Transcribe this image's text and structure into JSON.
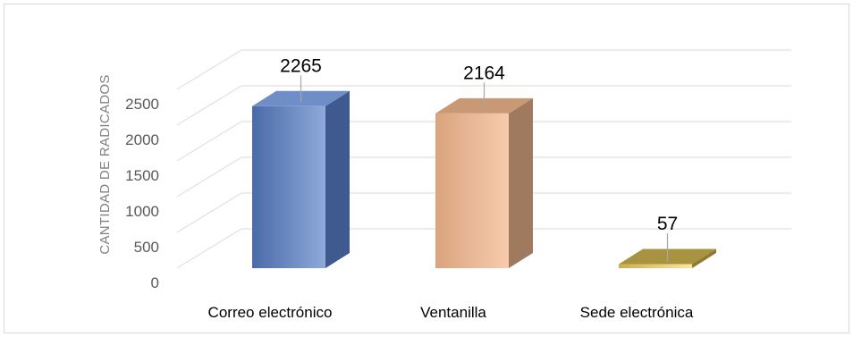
{
  "chart_data": {
    "type": "bar",
    "style": "3d-column",
    "categories": [
      "Correo electrónico",
      "Ventanilla",
      "Sede electrónica"
    ],
    "values": [
      2265,
      2164,
      57
    ],
    "data_labels": [
      "2265",
      "2164",
      "57"
    ],
    "ylabel": "CANTIDAD DE RADICADOS",
    "yticks": [
      0,
      500,
      1000,
      1500,
      2000,
      2500
    ],
    "ytick_labels": [
      "0",
      "500",
      "1000",
      "1500",
      "2000",
      "2500"
    ],
    "ylim": [
      0,
      2500
    ],
    "grid": true,
    "legend": "none",
    "colors": [
      {
        "front_light": "#8eaadb",
        "front_dark": "#4a6aa8",
        "side": "#3e5a8e",
        "top": "#6f8dc6"
      },
      {
        "front_light": "#f8cbad",
        "front_dark": "#d9a47e",
        "side": "#a07a5e",
        "top": "#c99874"
      },
      {
        "front_light": "#ffe699",
        "front_dark": "#c9ae4e",
        "side": "#8e7a2e",
        "top": "#a89440"
      }
    ]
  }
}
